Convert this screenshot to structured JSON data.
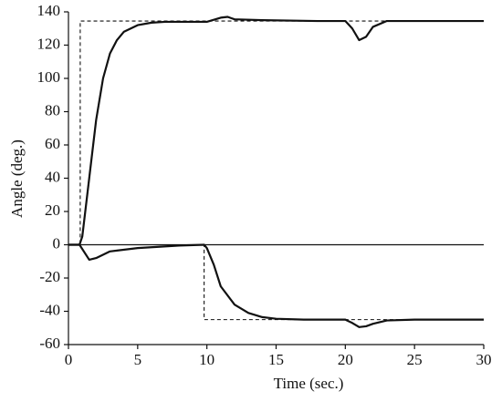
{
  "chart_data": {
    "type": "line",
    "xlabel": "Time (sec.)",
    "ylabel": "Angle (deg.)",
    "xlim": [
      0,
      30
    ],
    "xticks": [
      0,
      5,
      10,
      15,
      20,
      25,
      30
    ],
    "ylim": [
      -60,
      140
    ],
    "yticks": [
      -60,
      -40,
      -20,
      0,
      20,
      40,
      60,
      80,
      100,
      120,
      140
    ],
    "zero_line": true,
    "series": [
      {
        "color": "#111111",
        "dash": true,
        "x": [
          0,
          0.85,
          0.85,
          30
        ],
        "values": [
          0,
          0,
          134.5,
          134.5
        ]
      },
      {
        "color": "#111111",
        "dash": true,
        "x": [
          0,
          9.8,
          9.8,
          30
        ],
        "values": [
          0,
          0,
          -45,
          -45
        ]
      },
      {
        "color": "#111111",
        "dash": false,
        "x": [
          0,
          0.8,
          1,
          1.5,
          2,
          2.5,
          3,
          3.5,
          4,
          5,
          6,
          7,
          8,
          10,
          11,
          11.5,
          12,
          14,
          18,
          20,
          20.5,
          21,
          21.5,
          22,
          23,
          25,
          30
        ],
        "values": [
          0,
          0,
          5,
          40,
          75,
          100,
          115,
          123,
          128,
          132,
          133.5,
          134,
          134,
          134,
          136.5,
          137,
          135.5,
          135,
          134.5,
          134.5,
          130,
          123,
          125,
          131,
          134.5,
          134.5,
          134.5
        ]
      },
      {
        "color": "#111111",
        "dash": false,
        "x": [
          0,
          0.8,
          1.5,
          2,
          3,
          5,
          8,
          9.8,
          10,
          10.5,
          11,
          12,
          13,
          14,
          15,
          17,
          20,
          20.5,
          21,
          21.5,
          22,
          23,
          25,
          30
        ],
        "values": [
          0,
          0,
          -9,
          -8,
          -4,
          -2,
          -0.5,
          0,
          -2,
          -12,
          -25,
          -36,
          -41,
          -43.5,
          -44.5,
          -45,
          -45,
          -47,
          -49.5,
          -49,
          -47.5,
          -45.5,
          -45,
          -45
        ]
      }
    ]
  }
}
